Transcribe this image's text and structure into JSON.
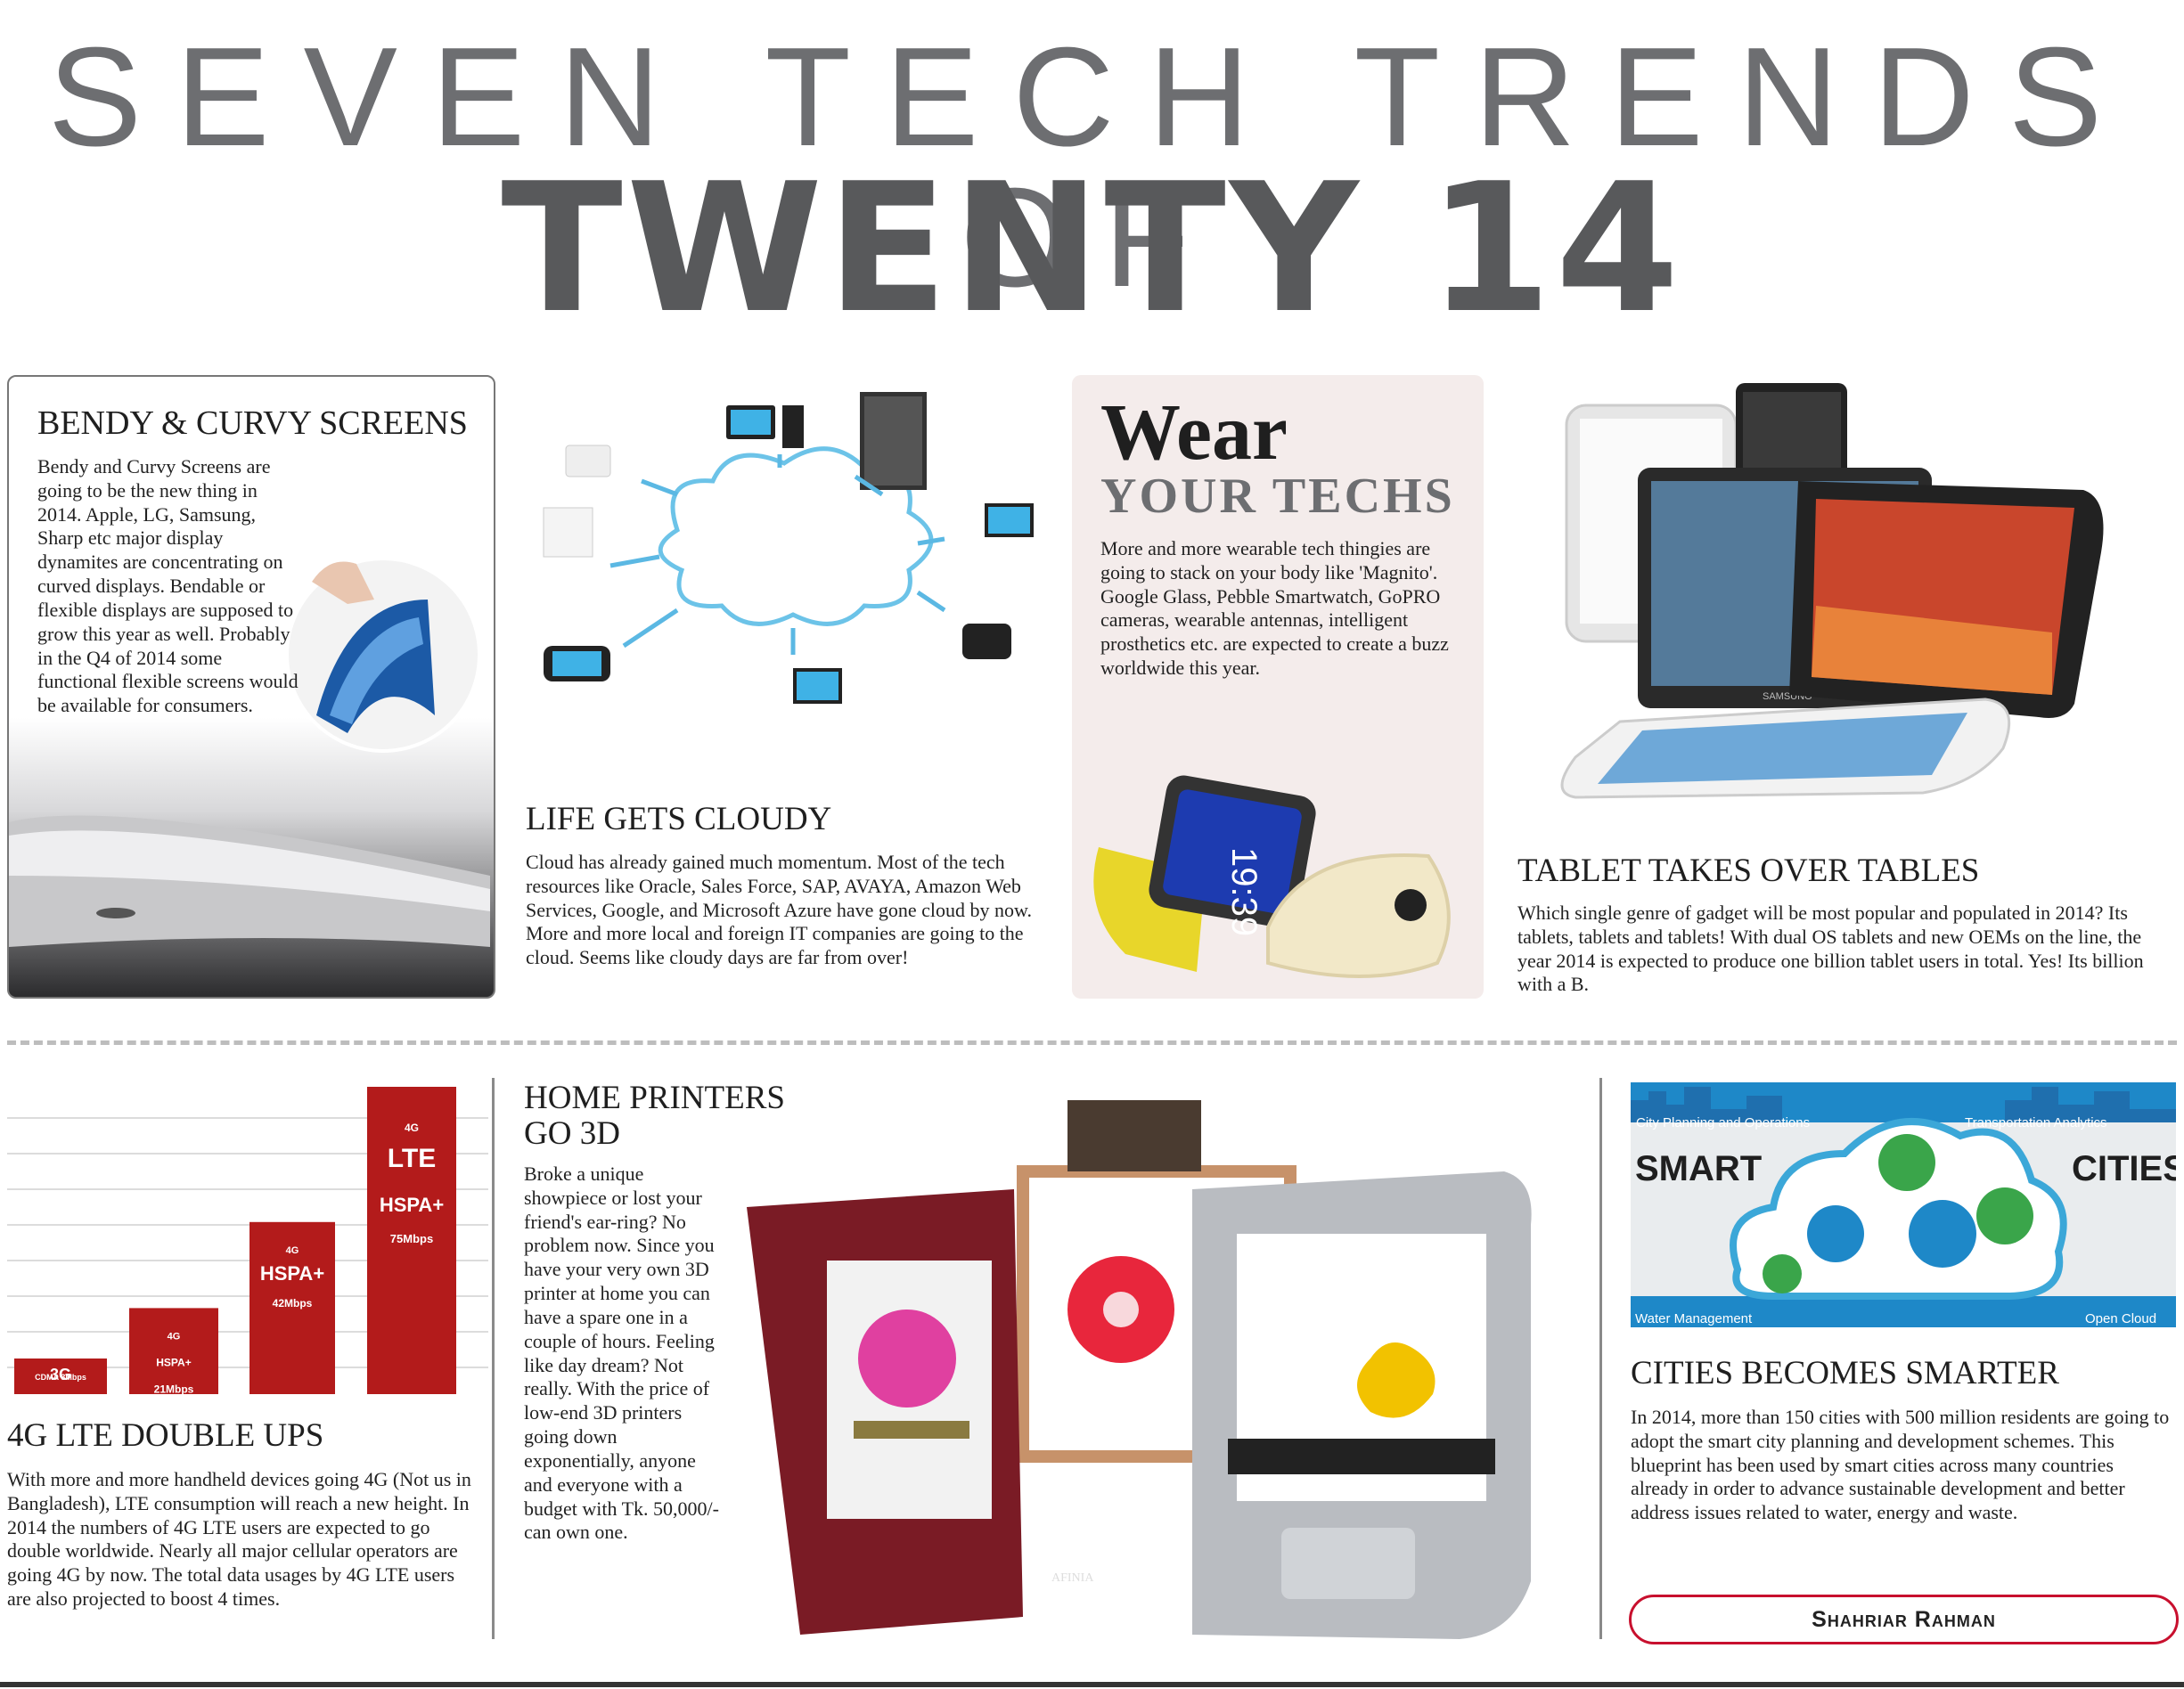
{
  "header": {
    "line1": "SEVEN TECH TRENDS OF",
    "line2": "TWENTY 14"
  },
  "bendy": {
    "title": "BENDY & CURVY SCREENS",
    "body": "Bendy and Curvy Screens are going to be the new thing in 2014. Apple, LG, Samsung, Sharp etc major display dynamites are concentrating on curved displays. Bendable or flexible displays are supposed to grow this year as well. Probably in the Q4 of 2014 some functional flexible screens would be available for consumers."
  },
  "cloudy": {
    "title": "LIFE GETS CLOUDY",
    "body": "Cloud has already gained much momentum. Most of the tech resources like Oracle, Sales Force, SAP, AVAYA, Amazon Web Services, Google, and Microsoft Azure have gone cloud by now. More and more local and foreign IT companies are going to the cloud. Seems like cloudy days are far from over!"
  },
  "wear": {
    "title1": "Wear",
    "title2": "YOUR TECHS",
    "body": "More and more wearable tech thingies are going to stack on your body like 'Magnito'. Google Glass, Pebble Smartwatch, GoPRO cameras, wearable antennas, intelligent prosthetics etc. are expected to create a buzz worldwide this year.",
    "watch_time": "19:39"
  },
  "tablet": {
    "title": "TABLET TAKES OVER TABLES",
    "body": "Which single genre of gadget will be most popular and populated in 2014? Its tablets, tablets and tablets! With dual OS tablets and new OEMs on the line, the year 2014 is expected to produce one billion tablet users in total. Yes! Its billion with a B.",
    "brand": "SAMSUNG"
  },
  "lte": {
    "title": "4G LTE DOUBLE UPS",
    "body": "With more and more handheld devices going 4G (Not us in Bangladesh), LTE consumption will reach a new height. In 2014 the numbers of 4G LTE users are expected to go double worldwide. Nearly all major cellular operators are going 4G by now. The total data usages by 4G LTE users are also projected to boost 4 times.",
    "bars": [
      {
        "label": "3G",
        "sub": "CDMA",
        "speed": "3Mbps",
        "value": 3
      },
      {
        "label": "4G",
        "sub": "HSPA+",
        "speed": "21Mbps",
        "value": 21
      },
      {
        "label": "4G",
        "sub": "HSPA+",
        "speed": "42Mbps",
        "value": 42
      },
      {
        "label": "4G",
        "sub": "LTE",
        "sub2": "HSPA+",
        "speed": "75Mbps",
        "value": 75
      }
    ]
  },
  "printers": {
    "title1": "HOME PRINTERS",
    "title2": "GO 3D",
    "body": "Broke a unique showpiece or lost your friend's ear-ring? No problem now. Since you have your very own 3D printer at home you can have a spare one in a couple of hours. Feeling like day dream? Not really. With the price of low-end 3D printers going down exponentially, anyone and everyone with a budget with Tk. 50,000/- can own one.",
    "brand": "AFINIA"
  },
  "cities": {
    "graphic": {
      "top_left": "City Planning and Operations",
      "top_right": "Transportation Analytics",
      "smart": "SMART",
      "cities": "CITIES",
      "bottom_left": "Water Management",
      "bottom_right": "Open Cloud"
    },
    "title": "CITIES BECOMES SMARTER",
    "body": "In 2014, more than 150 cities with 500 million residents are going to adopt the smart city planning and development schemes. This blueprint has been used by smart cities across many countries already in order to advance sustainable development and better address issues related to water, energy and waste."
  },
  "byline": "Shahriar Rahman",
  "colors": {
    "lte_red": "#b31b1b",
    "city_blue": "#1e88c8",
    "cloud_blue": "#3ba7d8",
    "printer_red": "#7a1b25"
  }
}
